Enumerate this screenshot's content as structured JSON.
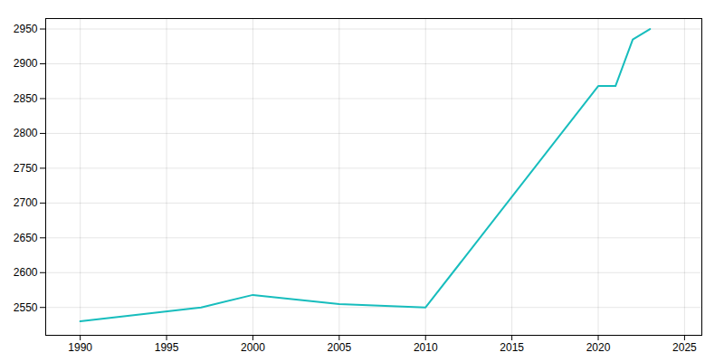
{
  "chart_data": {
    "type": "line",
    "x": [
      1990,
      1997,
      2000,
      2005,
      2010,
      2020,
      2021,
      2022,
      2023
    ],
    "values": [
      2530,
      2550,
      2568,
      2555,
      2550,
      2868,
      2868,
      2935,
      2950
    ],
    "color": "#17BDBD",
    "xlim": [
      1988,
      2026
    ],
    "ylim": [
      2510,
      2965
    ],
    "xticks": [
      1990,
      1995,
      2000,
      2005,
      2010,
      2015,
      2020,
      2025
    ],
    "yticks": [
      2550,
      2600,
      2650,
      2700,
      2750,
      2800,
      2850,
      2900,
      2950
    ],
    "grid": true
  }
}
